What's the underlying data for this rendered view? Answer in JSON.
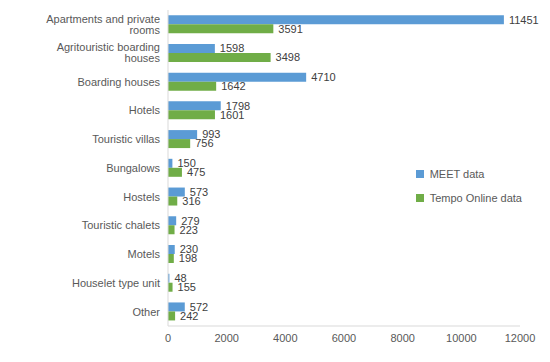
{
  "chart_data": {
    "type": "bar",
    "orientation": "horizontal",
    "categories": [
      "Apartments and private rooms",
      "Agritouristic boarding houses",
      "Boarding houses",
      "Hotels",
      "Touristic villas",
      "Bungalows",
      "Hostels",
      "Touristic chalets",
      "Motels",
      "Houselet type unit",
      "Other"
    ],
    "series": [
      {
        "name": "MEET data",
        "color": "#5b9bd5",
        "values": [
          11451,
          1598,
          4710,
          1798,
          993,
          150,
          573,
          279,
          230,
          48,
          572
        ]
      },
      {
        "name": "Tempo Online data",
        "color": "#70ad47",
        "values": [
          3591,
          3498,
          1642,
          1601,
          756,
          475,
          316,
          223,
          198,
          155,
          242
        ]
      }
    ],
    "xlim": [
      0,
      12000
    ],
    "xticks": [
      0,
      2000,
      4000,
      6000,
      8000,
      10000,
      12000
    ],
    "grid": false,
    "data_labels": true,
    "legend": "right"
  }
}
